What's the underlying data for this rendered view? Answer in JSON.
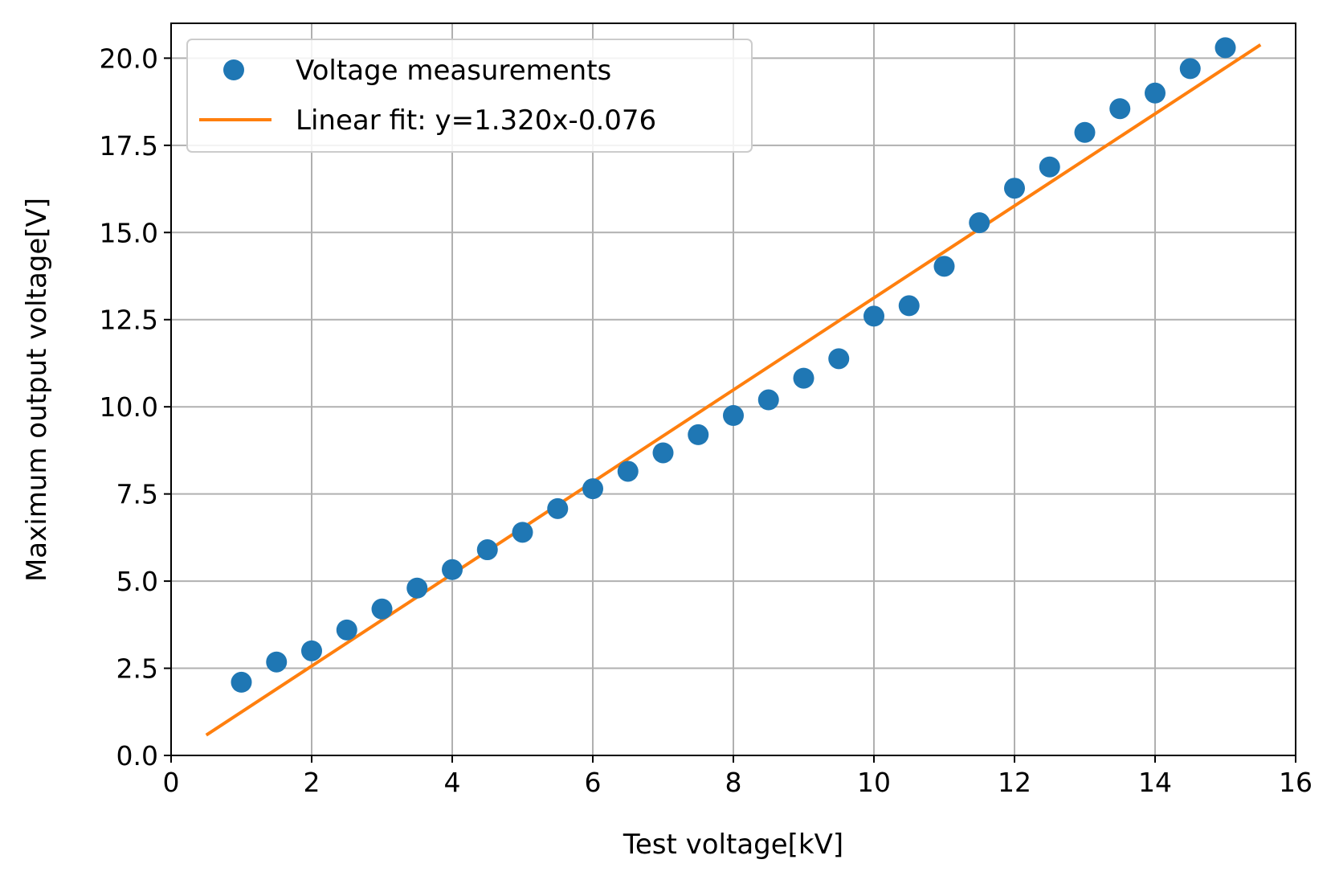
{
  "chart_data": {
    "type": "scatter",
    "title": "",
    "xlabel": "Test voltage[kV]",
    "ylabel": "Maximum output voltage[V]",
    "xlim": [
      0,
      16
    ],
    "ylim": [
      0,
      21
    ],
    "x_ticks": [
      0,
      2,
      4,
      6,
      8,
      10,
      12,
      14,
      16
    ],
    "x_tick_labels": [
      "0",
      "2",
      "4",
      "6",
      "8",
      "10",
      "12",
      "14",
      "16"
    ],
    "y_ticks": [
      0,
      2.5,
      5,
      7.5,
      10,
      12.5,
      15,
      17.5,
      20
    ],
    "y_tick_labels": [
      "0.0",
      "2.5",
      "5.0",
      "7.5",
      "10.0",
      "12.5",
      "15.0",
      "17.5",
      "20.0"
    ],
    "grid": true,
    "legend_position": "upper-left",
    "series": [
      {
        "name": "Voltage measurements",
        "kind": "scatter",
        "color": "#1f77b4",
        "x": [
          1,
          1.5,
          2,
          2.5,
          3,
          3.5,
          4,
          4.5,
          5,
          5.5,
          6,
          6.5,
          7,
          7.5,
          8,
          8.5,
          9,
          9.5,
          10,
          10.5,
          11,
          11.5,
          12,
          12.5,
          13,
          13.5,
          14,
          14.5,
          15
        ],
        "y": [
          2.1,
          2.68,
          3.0,
          3.6,
          4.2,
          4.8,
          5.33,
          5.9,
          6.4,
          7.08,
          7.65,
          8.15,
          8.68,
          9.2,
          9.75,
          10.2,
          10.82,
          11.38,
          12.6,
          12.9,
          14.03,
          15.28,
          16.27,
          16.88,
          17.87,
          18.55,
          19.0,
          19.7,
          20.3
        ]
      },
      {
        "name": "Linear fit: y=1.320x-0.076",
        "kind": "line",
        "color": "#ff7f0e",
        "x": [
          0.5,
          15.5
        ],
        "y": [
          0.584,
          20.384
        ]
      }
    ]
  }
}
